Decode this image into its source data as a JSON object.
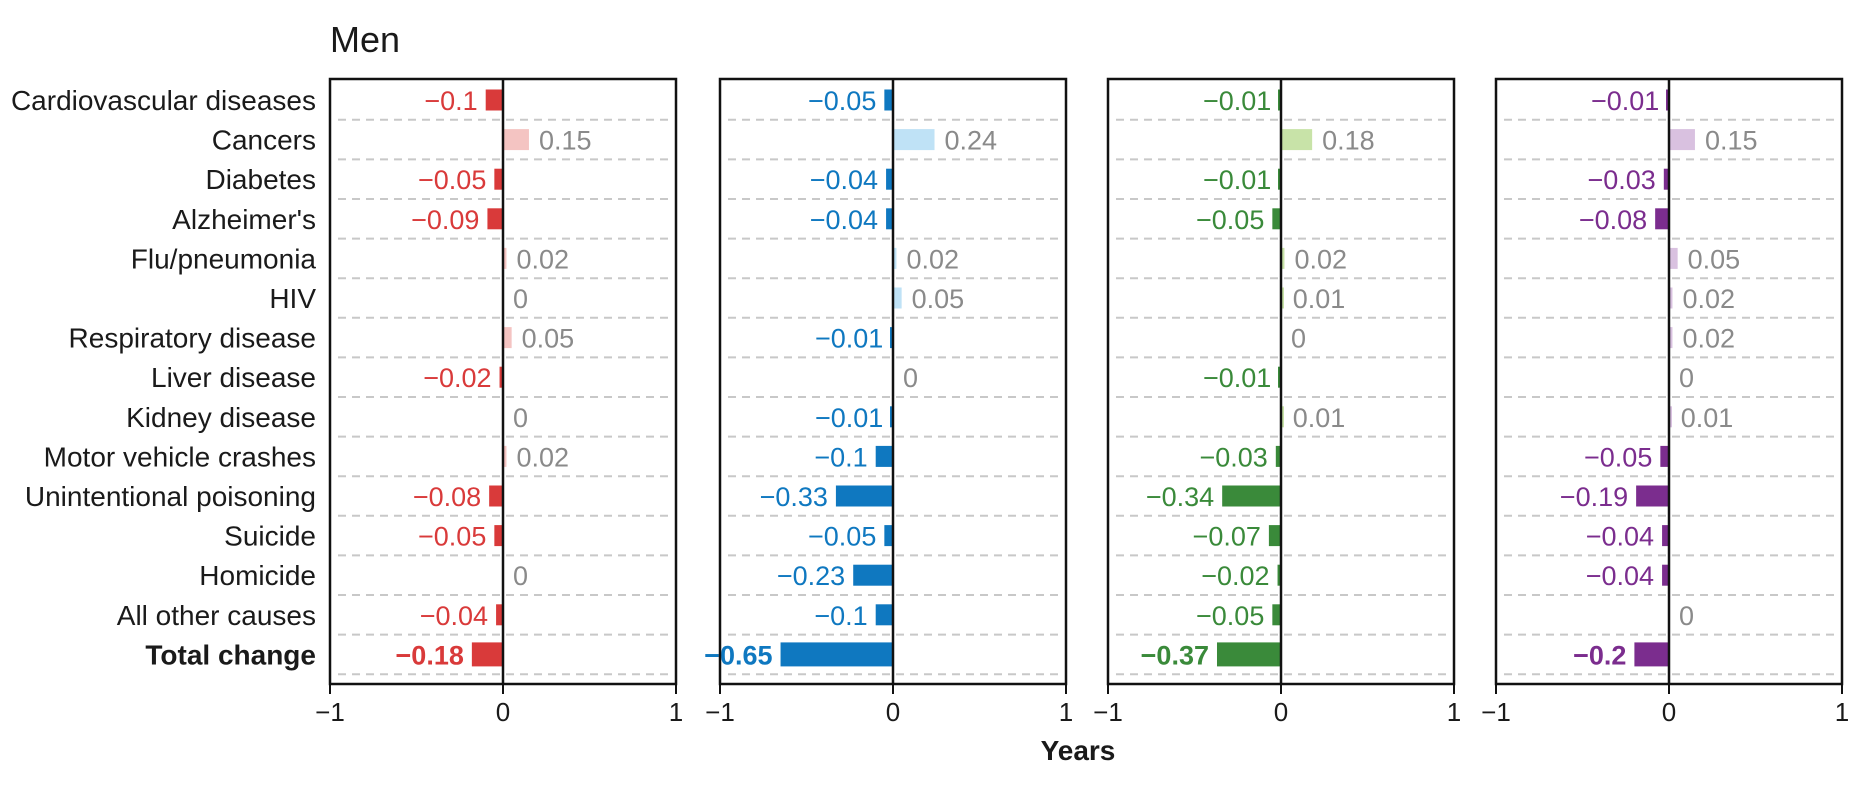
{
  "chart_data": {
    "type": "bar",
    "orientation": "horizontal",
    "title": "Men",
    "xlabel": "Years",
    "xlim": [
      -1,
      1
    ],
    "xticks": [
      "−1",
      "0",
      "1"
    ],
    "categories": [
      "Cardiovascular diseases",
      "Cancers",
      "Diabetes",
      "Alzheimer's",
      "Flu/pneumonia",
      "HIV",
      "Respiratory disease",
      "Liver disease",
      "Kidney disease",
      "Motor vehicle crashes",
      "Unintentional poisoning",
      "Suicide",
      "Homicide",
      "All other causes",
      "Total change"
    ],
    "grid": "dashed horizontal separators",
    "panels": [
      {
        "color": "#d93a3a",
        "light_color": "#f4c4c2",
        "values": [
          -0.1,
          0.15,
          -0.05,
          -0.09,
          0.02,
          0,
          0.05,
          -0.02,
          0,
          0.02,
          -0.08,
          -0.05,
          0,
          -0.04,
          -0.18
        ],
        "labels": [
          "−0.1",
          "0.15",
          "−0.05",
          "−0.09",
          "0.02",
          "0",
          "0.05",
          "−0.02",
          "0",
          "0.02",
          "−0.08",
          "−0.05",
          "0",
          "−0.04",
          "−0.18"
        ]
      },
      {
        "color": "#0f78c0",
        "light_color": "#bfe2f6",
        "values": [
          -0.05,
          0.24,
          -0.04,
          -0.04,
          0.02,
          0.05,
          -0.01,
          0,
          -0.01,
          -0.1,
          -0.33,
          -0.05,
          -0.23,
          -0.1,
          -0.65
        ],
        "labels": [
          "−0.05",
          "0.24",
          "−0.04",
          "−0.04",
          "0.02",
          "0.05",
          "−0.01",
          "0",
          "−0.01",
          "−0.1",
          "−0.33",
          "−0.05",
          "−0.23",
          "−0.1",
          "−0.65"
        ]
      },
      {
        "color": "#3a8a3a",
        "light_color": "#c8e3a8",
        "values": [
          -0.01,
          0.18,
          -0.01,
          -0.05,
          0.02,
          0.01,
          0,
          -0.01,
          0.01,
          -0.03,
          -0.34,
          -0.07,
          -0.02,
          -0.05,
          -0.37
        ],
        "labels": [
          "−0.01",
          "0.18",
          "−0.01",
          "−0.05",
          "0.02",
          "0.01",
          "0",
          "−0.01",
          "0.01",
          "−0.03",
          "−0.34",
          "−0.07",
          "−0.02",
          "−0.05",
          "−0.37"
        ]
      },
      {
        "color": "#7b2d8e",
        "light_color": "#d9c1e0",
        "values": [
          -0.01,
          0.15,
          -0.03,
          -0.08,
          0.05,
          0.02,
          0.02,
          0,
          0.01,
          -0.05,
          -0.19,
          -0.04,
          -0.04,
          0,
          -0.2
        ],
        "labels": [
          "−0.01",
          "0.15",
          "−0.03",
          "−0.08",
          "0.05",
          "0.02",
          "0.02",
          "0",
          "0.01",
          "−0.05",
          "−0.19",
          "−0.04",
          "−0.04",
          "0",
          "−0.2"
        ]
      }
    ],
    "positive_label_color": "#8a8a8a"
  }
}
